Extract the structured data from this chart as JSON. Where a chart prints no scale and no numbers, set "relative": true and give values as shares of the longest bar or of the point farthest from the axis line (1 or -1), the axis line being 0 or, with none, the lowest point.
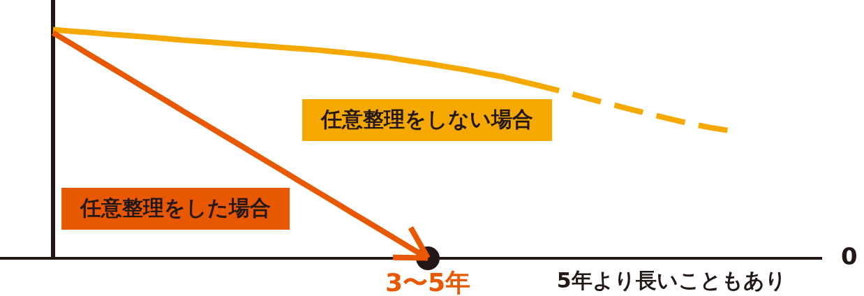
{
  "chart_data": {
    "type": "line",
    "relative": true,
    "categories": [
      null,
      null,
      null,
      null,
      null,
      null,
      null,
      null,
      null,
      null,
      null,
      null,
      null,
      null,
      null,
      null,
      null,
      null,
      null,
      null,
      "3〜5年",
      null,
      null,
      null,
      null,
      null,
      null,
      null,
      null,
      null,
      null,
      null,
      null,
      "5年より長いこともあり",
      null,
      null,
      null,
      null,
      null,
      null,
      null,
      null
    ],
    "series": [
      {
        "name": "任意整理をした場合",
        "color": "#e85800",
        "values": [
          0.987,
          0.938,
          0.888,
          0.839,
          0.79,
          0.74,
          0.691,
          0.641,
          0.592,
          0.543,
          0.494,
          0.444,
          0.395,
          0.345,
          0.296,
          0.247,
          0.197,
          0.148,
          0.099,
          0.049,
          0,
          null,
          null,
          null,
          null,
          null,
          null,
          null,
          null,
          null,
          null,
          null,
          null,
          null,
          null,
          null,
          null,
          null,
          null,
          null,
          null,
          null
        ]
      },
      {
        "name": "任意整理をしない場合",
        "color": "#f5a800",
        "values": [
          1,
          0.993,
          0.987,
          0.98,
          0.974,
          0.968,
          0.961,
          0.954,
          0.948,
          0.942,
          0.936,
          0.93,
          0.924,
          0.918,
          0.912,
          0.904,
          0.896,
          0.887,
          0.877,
          0.864,
          0.852,
          0.838,
          0.825,
          0.809,
          0.794,
          0.774,
          0.754,
          0.733,
          null,
          null,
          null,
          null,
          null,
          null,
          null,
          null,
          null,
          null,
          null,
          null,
          null,
          null
        ]
      },
      {
        "color": "#f5a800",
        "line_style": "dashed",
        "values": [
          null,
          null,
          null,
          null,
          null,
          null,
          null,
          null,
          null,
          null,
          null,
          null,
          null,
          null,
          null,
          null,
          null,
          null,
          null,
          null,
          null,
          null,
          null,
          null,
          null,
          null,
          null,
          0.733,
          0.712,
          0.69,
          0.669,
          0.648,
          0.628,
          0.608,
          0.589,
          0.573,
          0.56,
          null,
          null,
          null,
          null,
          null
        ]
      },
      {
        "type": "scatter",
        "color": "#231815",
        "marker": "circle",
        "values": [
          null,
          null,
          null,
          null,
          null,
          null,
          null,
          null,
          null,
          null,
          null,
          null,
          null,
          null,
          null,
          null,
          null,
          null,
          null,
          null,
          0,
          null,
          null,
          null,
          null,
          null,
          null,
          null,
          null,
          null,
          null,
          null,
          null,
          null,
          null,
          null,
          null,
          null,
          null,
          null,
          null,
          null
        ]
      }
    ],
    "annotations": [
      "0"
    ]
  }
}
